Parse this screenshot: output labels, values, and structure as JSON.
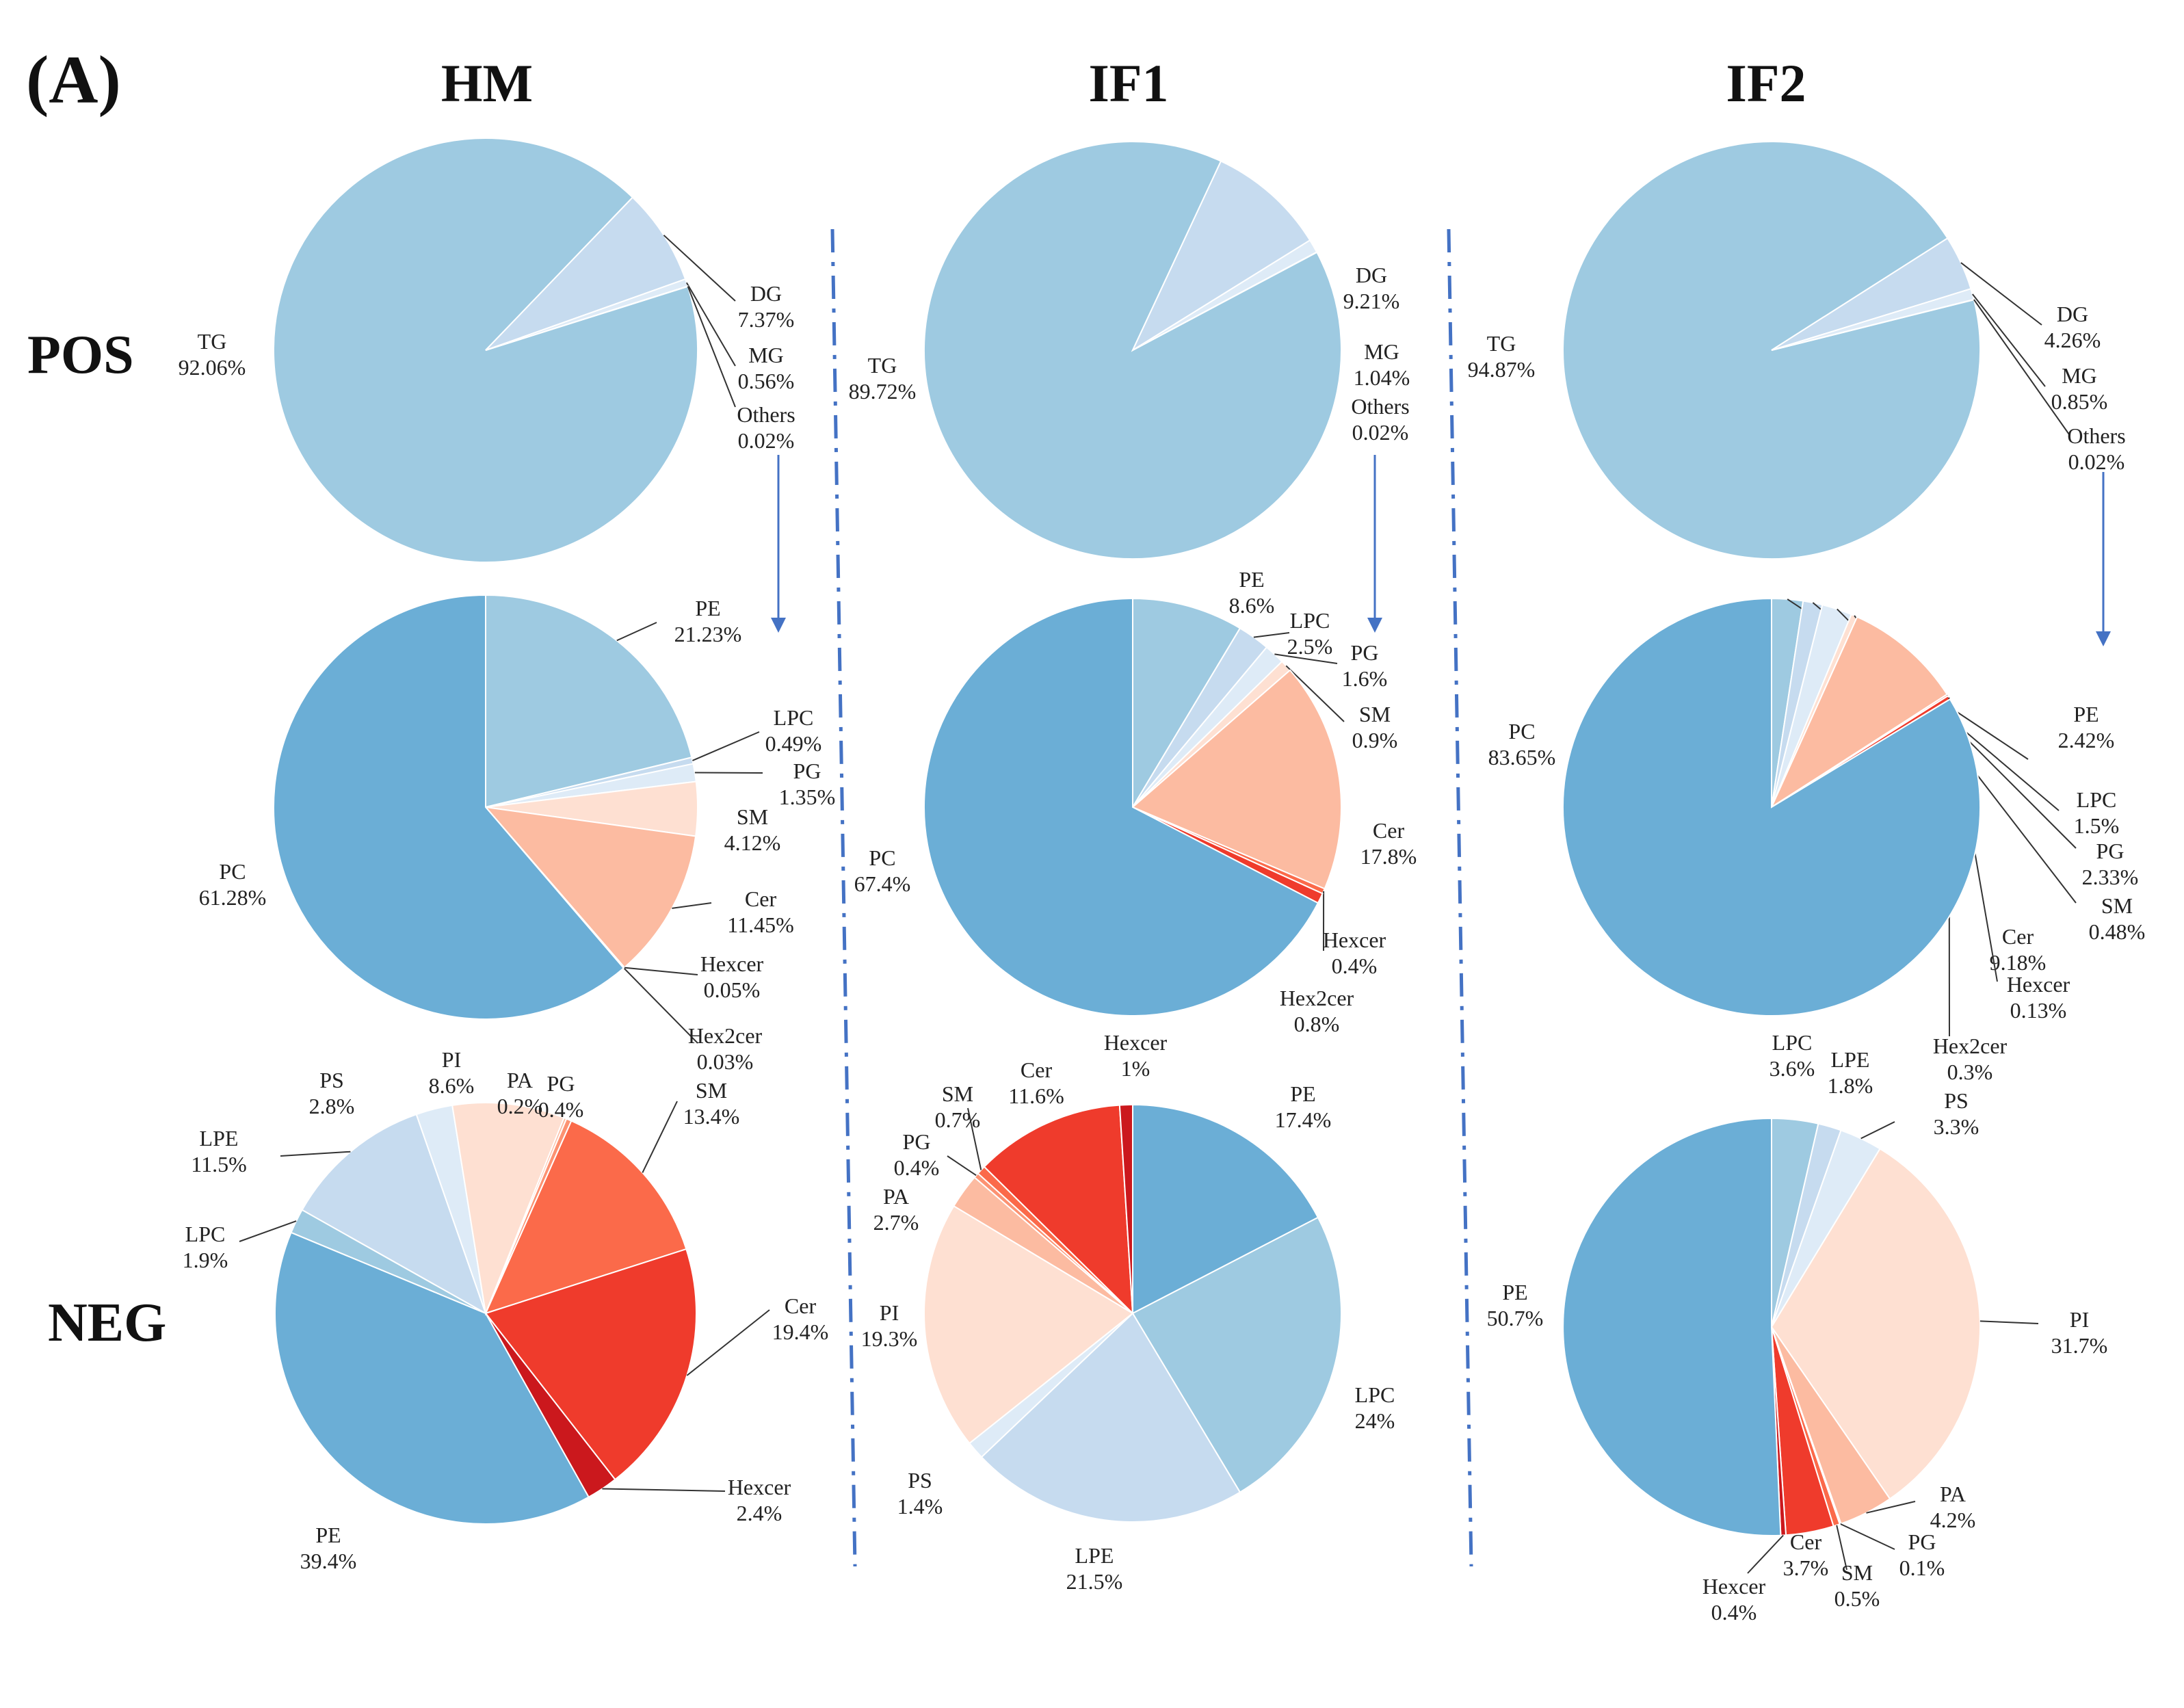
{
  "panel_label": "(A)",
  "columns": [
    "HM",
    "IF1",
    "IF2"
  ],
  "rows": [
    "POS",
    "NEG"
  ],
  "colors": {
    "TG": "#9ecae1",
    "DG": "#c6dbef",
    "MG": "#deebf7",
    "Others": "#eff3ff",
    "PC": "#6baed6",
    "PE_pos": "#9ecae1",
    "LPC_pos": "#c6dbef",
    "PG_pos": "#deebf7",
    "SM_pos": "#fee0d2",
    "Cer_pos": "#fcbba1",
    "Hexcer_pos": "#fb6a4a",
    "Hex2cer_pos": "#ef3b2c",
    "PE_neg": "#6baed6",
    "LPC_neg": "#9ecae1",
    "LPE_neg": "#c6dbef",
    "PS_neg": "#deebf7",
    "PI_neg": "#fee0d2",
    "PA_neg": "#fcbba1",
    "PG_neg": "#fc9272",
    "SM_neg": "#fb6a4a",
    "Cer_neg": "#ef3b2c",
    "Hexcer_neg": "#cb181d",
    "arrow": "#4472c4",
    "divider": "#4472c4"
  },
  "chart_data": [
    {
      "type": "pie",
      "title": "HM POS",
      "labels": [
        "TG",
        "DG",
        "MG",
        "Others"
      ],
      "values": [
        92.06,
        7.37,
        0.56,
        0.02
      ],
      "value_labels": [
        "92.06%",
        "7.37%",
        "0.56%",
        "0.02%"
      ]
    },
    {
      "type": "pie",
      "title": "IF1 POS",
      "labels": [
        "TG",
        "DG",
        "MG",
        "Others"
      ],
      "values": [
        89.72,
        9.21,
        1.04,
        0.02
      ],
      "value_labels": [
        "89.72%",
        "9.21%",
        "1.04%",
        "0.02%"
      ]
    },
    {
      "type": "pie",
      "title": "IF2 POS",
      "labels": [
        "TG",
        "DG",
        "MG",
        "Others"
      ],
      "values": [
        94.87,
        4.26,
        0.85,
        0.02
      ],
      "value_labels": [
        "94.87%",
        "4.26%",
        "0.85%",
        "0.02%"
      ]
    },
    {
      "type": "pie",
      "title": "HM POS Others",
      "labels": [
        "PE",
        "LPC",
        "PG",
        "SM",
        "Cer",
        "Hexcer",
        "Hex2cer",
        "PC"
      ],
      "values": [
        21.23,
        0.49,
        1.35,
        4.12,
        11.45,
        0.05,
        0.03,
        61.28
      ],
      "value_labels": [
        "21.23%",
        "0.49%",
        "1.35%",
        "4.12%",
        "11.45%",
        "0.05%",
        "0.03%",
        "61.28%"
      ]
    },
    {
      "type": "pie",
      "title": "IF1 POS Others",
      "labels": [
        "PE",
        "LPC",
        "PG",
        "SM",
        "Cer",
        "Hexcer",
        "Hex2cer",
        "PC"
      ],
      "values": [
        8.6,
        2.5,
        1.6,
        0.9,
        17.8,
        0.4,
        0.8,
        67.4
      ],
      "value_labels": [
        "8.6%",
        "2.5%",
        "1.6%",
        "0.9%",
        "17.8%",
        "0.4%",
        "0.8%",
        "67.4%"
      ]
    },
    {
      "type": "pie",
      "title": "IF2 POS Others",
      "labels": [
        "PE",
        "LPC",
        "PG",
        "SM",
        "Cer",
        "Hexcer",
        "Hex2cer",
        "PC"
      ],
      "values": [
        2.42,
        1.5,
        2.33,
        0.48,
        9.18,
        0.13,
        0.3,
        83.65
      ],
      "value_labels": [
        "2.42%",
        "1.5%",
        "2.33%",
        "0.48%",
        "9.18%",
        "0.13%",
        "0.3%",
        "83.65%"
      ]
    },
    {
      "type": "pie",
      "title": "HM NEG",
      "labels": [
        "SM",
        "Cer",
        "Hexcer",
        "PE",
        "LPC",
        "LPE",
        "PS",
        "PI",
        "PA",
        "PG"
      ],
      "values": [
        13.4,
        19.4,
        2.4,
        39.4,
        1.9,
        11.5,
        2.8,
        8.6,
        0.2,
        0.4
      ],
      "value_labels": [
        "13.4%",
        "19.4%",
        "2.4%",
        "39.4%",
        "1.9%",
        "11.5%",
        "2.8%",
        "8.6%",
        "0.2%",
        "0.4%"
      ]
    },
    {
      "type": "pie",
      "title": "IF1 NEG",
      "labels": [
        "PE",
        "LPC",
        "LPE",
        "PS",
        "PI",
        "PA",
        "PG",
        "SM",
        "Cer",
        "Hexcer"
      ],
      "values": [
        17.4,
        24,
        21.5,
        1.4,
        19.3,
        2.7,
        0.4,
        0.7,
        11.6,
        1
      ],
      "value_labels": [
        "17.4%",
        "24%",
        "21.5%",
        "1.4%",
        "19.3%",
        "2.7%",
        "0.4%",
        "0.7%",
        "11.6%",
        "1%"
      ]
    },
    {
      "type": "pie",
      "title": "IF2 NEG",
      "labels": [
        "LPC",
        "LPE",
        "PS",
        "PI",
        "PA",
        "PG",
        "SM",
        "Cer",
        "Hexcer",
        "PE"
      ],
      "values": [
        3.6,
        1.8,
        3.3,
        31.7,
        4.2,
        0.1,
        0.5,
        3.7,
        0.4,
        50.7
      ],
      "value_labels": [
        "3.6%",
        "1.8%",
        "3.3%",
        "31.7%",
        "4.2%",
        "0.1%",
        "0.5%",
        "3.7%",
        "0.4%",
        "50.7%"
      ]
    }
  ]
}
